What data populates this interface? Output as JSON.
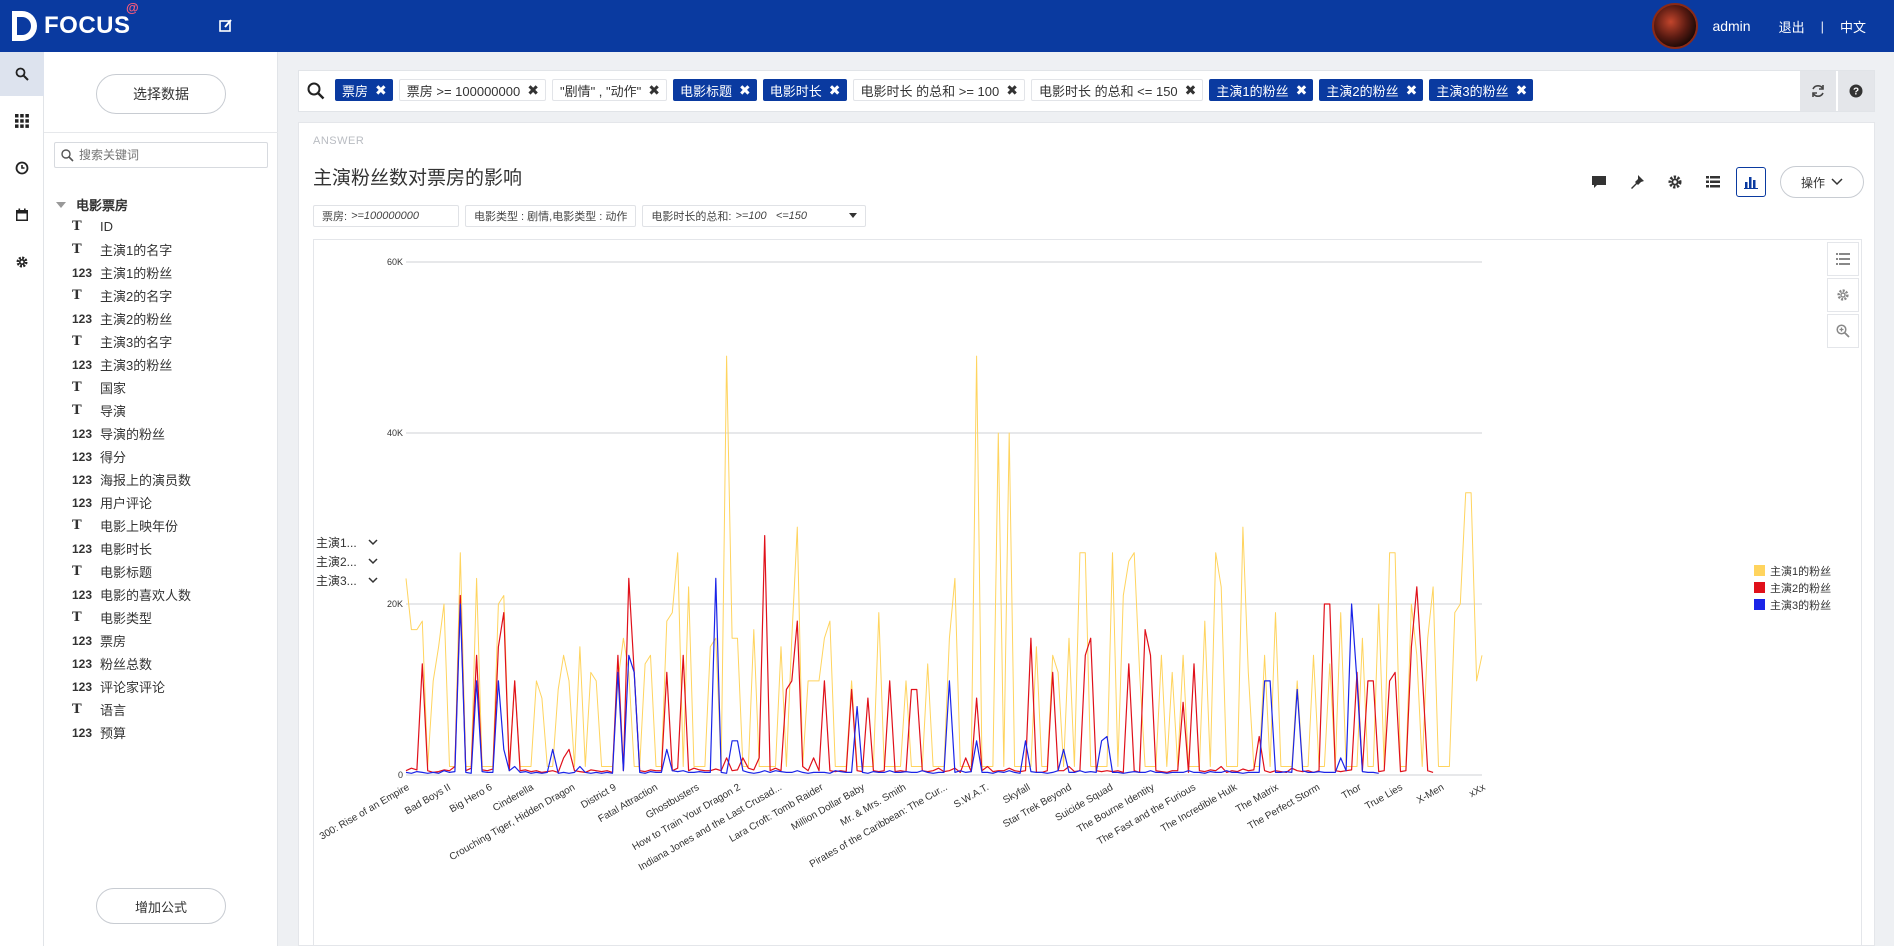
{
  "header": {
    "logo_text": "FOCUS",
    "logo_sup": "@",
    "user_name": "admin",
    "logout": "退出",
    "separator": "|",
    "language": "中文"
  },
  "rail": {
    "items": [
      "search-icon",
      "grid-icon",
      "history-icon",
      "calendar-icon",
      "settings-icon"
    ]
  },
  "data_panel": {
    "select_data_label": "选择数据",
    "search_placeholder": "搜索关键词",
    "source_name": "电影票房",
    "add_formula_label": "增加公式",
    "fields": [
      {
        "type": "T",
        "name": "ID"
      },
      {
        "type": "T",
        "name": "主演1的名字"
      },
      {
        "type": "123",
        "name": "主演1的粉丝"
      },
      {
        "type": "T",
        "name": "主演2的名字"
      },
      {
        "type": "123",
        "name": "主演2的粉丝"
      },
      {
        "type": "T",
        "name": "主演3的名字"
      },
      {
        "type": "123",
        "name": "主演3的粉丝"
      },
      {
        "type": "T",
        "name": "国家"
      },
      {
        "type": "T",
        "name": "导演"
      },
      {
        "type": "123",
        "name": "导演的粉丝"
      },
      {
        "type": "123",
        "name": "得分"
      },
      {
        "type": "123",
        "name": "海报上的演员数"
      },
      {
        "type": "123",
        "name": "用户评论"
      },
      {
        "type": "T",
        "name": "电影上映年份"
      },
      {
        "type": "123",
        "name": "电影时长"
      },
      {
        "type": "T",
        "name": "电影标题"
      },
      {
        "type": "123",
        "name": "电影的喜欢人数"
      },
      {
        "type": "T",
        "name": "电影类型"
      },
      {
        "type": "123",
        "name": "票房"
      },
      {
        "type": "123",
        "name": "粉丝总数"
      },
      {
        "type": "123",
        "name": "评论家评论"
      },
      {
        "type": "T",
        "name": "语言"
      },
      {
        "type": "123",
        "name": "预算"
      }
    ]
  },
  "query": {
    "tokens": [
      {
        "kind": "col",
        "label": "票房"
      },
      {
        "kind": "filter",
        "label": "票房 >= 100000000"
      },
      {
        "kind": "filter",
        "label": "\"剧情\" , \"动作\""
      },
      {
        "kind": "col",
        "label": "电影标题"
      },
      {
        "kind": "col",
        "label": "电影时长"
      },
      {
        "kind": "filter",
        "label": "电影时长 的总和 >= 100"
      },
      {
        "kind": "filter",
        "label": "电影时长 的总和 <= 150"
      },
      {
        "kind": "col",
        "label": "主演1的粉丝"
      },
      {
        "kind": "col",
        "label": "主演2的粉丝"
      },
      {
        "kind": "col",
        "label": "主演3的粉丝"
      }
    ],
    "remove_glyph": "✖"
  },
  "answer": {
    "label": "ANSWER",
    "title": "主演粉丝数对票房的影响",
    "ops_label": "操作",
    "chips": [
      {
        "label": "票房:",
        "value": ">=100000000"
      },
      {
        "label": "电影类型 : 剧情,电影类型 : 动作",
        "value": ""
      },
      {
        "label": "电影时长的总和:",
        "value": ">=100   <=150"
      }
    ],
    "series_selectors": [
      "主演1...",
      "主演2...",
      "主演3..."
    ]
  },
  "colors": {
    "brand": "#0a3aa0",
    "series1": "#ffd45e",
    "series2": "#e0101a",
    "series3": "#1a24e8"
  },
  "chart_data": {
    "type": "line",
    "title": "",
    "xlabel": "电影标题",
    "ylabel": "",
    "ylim": [
      0,
      60000
    ],
    "yticks": [
      0,
      20000,
      40000,
      60000
    ],
    "ytick_labels": [
      "0",
      "20K",
      "40K",
      "60K"
    ],
    "x_labels": [
      "300: Rise of an Empire",
      "Bad Boys II",
      "Big Hero 6",
      "Cinderella",
      "Crouching Tiger, Hidden Dragon",
      "District 9",
      "Fatal Attraction",
      "Ghostbusters",
      "How to Train Your Dragon 2",
      "Indiana Jones and the Last Crusad...",
      "Lara Croft: Tomb Raider",
      "Million Dollar Baby",
      "Mr. & Mrs. Smith",
      "Pirates of the Caribbean: The Cur...",
      "S.W.A.T.",
      "Skyfall",
      "Star Trek Beyond",
      "Suicide Squad",
      "The Bourne Identity",
      "The Fast and the Furious",
      "The Incredible Hulk",
      "The Matrix",
      "The Perfect Storm",
      "Thor",
      "True Lies",
      "X-Men",
      "xXx"
    ],
    "legend": [
      "主演1的粉丝",
      "主演2的粉丝",
      "主演3的粉丝"
    ],
    "series": [
      {
        "name": "主演1的粉丝",
        "values": [
          23000,
          17000,
          17000,
          18000,
          1000,
          11000,
          15000,
          20000,
          1000,
          1000,
          26000,
          1000,
          1000,
          23000,
          1000,
          1000,
          1000,
          20000,
          21000,
          1000,
          11000,
          1000,
          1000,
          1000,
          11000,
          9000,
          1000,
          1000,
          10000,
          14000,
          11000,
          1000,
          15000,
          1000,
          12000,
          11000,
          1000,
          1000,
          1000,
          11000,
          16000,
          12000,
          1000,
          1000,
          13000,
          14000,
          1000,
          1000,
          18000,
          19000,
          26000,
          1000,
          22000,
          1000,
          1000,
          1000,
          15000,
          16000,
          1000,
          49000,
          16000,
          16000,
          1000,
          1000,
          17000,
          1000,
          1000,
          1000,
          1000,
          15000,
          1000,
          16000,
          29000,
          1000,
          11000,
          11000,
          11000,
          16000,
          18000,
          1000,
          1000,
          1000,
          11000,
          1000,
          1000,
          1000,
          1000,
          19000,
          1000,
          1000,
          1000,
          1000,
          11000,
          1000,
          1000,
          1000,
          13000,
          1000,
          1000,
          1000,
          16000,
          23000,
          1000,
          1000,
          1000,
          49000,
          1000,
          1000,
          1000,
          40000,
          1000,
          40000,
          1000,
          1000,
          1000,
          1000,
          15000,
          1000,
          1000,
          14000,
          12000,
          1000,
          16000,
          1000,
          26000,
          26000,
          1000,
          1000,
          1000,
          1000,
          26000,
          1000,
          21000,
          25000,
          26000,
          12000,
          1000,
          1000,
          1000,
          14000,
          1000,
          12000,
          1000,
          14000,
          1000,
          1000,
          1000,
          18000,
          1000,
          26000,
          22000,
          1000,
          1000,
          1000,
          29000,
          12000,
          1000,
          1000,
          14000,
          1000,
          19000,
          1000,
          1000,
          1000,
          11000,
          1000,
          1000,
          14000,
          1000,
          1000,
          13000,
          1000,
          19000,
          1000,
          1000,
          1000,
          16000,
          1000,
          1000,
          20000,
          1000,
          26000,
          26000,
          1000,
          1000,
          20000,
          14000,
          1000,
          16000,
          22000,
          1000,
          1000,
          1000,
          19000,
          20000,
          33000,
          33000,
          11000,
          14000
        ]
      },
      {
        "name": "主演2的粉丝",
        "values": [
          500,
          800,
          600,
          13000,
          500,
          300,
          400,
          600,
          500,
          1000,
          21000,
          500,
          800,
          14000,
          600,
          500,
          700,
          15000,
          19000,
          500,
          11000,
          500,
          600,
          400,
          500,
          300,
          400,
          500,
          300,
          2000,
          3000,
          500,
          400,
          300,
          600,
          500,
          400,
          500,
          300,
          14000,
          500,
          23000,
          12000,
          500,
          400,
          600,
          500,
          500,
          12000,
          500,
          800,
          14000,
          500,
          800,
          600,
          500,
          500,
          700,
          500,
          2000,
          500,
          600,
          2000,
          800,
          600,
          2000,
          28000,
          500,
          800,
          500,
          10000,
          11000,
          18000,
          1000,
          500,
          2000,
          500,
          11000,
          500,
          400,
          500,
          400,
          10000,
          500,
          400,
          9000,
          500,
          400,
          500,
          11000,
          400,
          500,
          400,
          10000,
          10000,
          500,
          400,
          500,
          800,
          400,
          500,
          800,
          300,
          2000,
          400,
          9000,
          500,
          1000,
          400,
          500,
          500,
          800,
          500,
          400,
          500,
          16000,
          300,
          300,
          500,
          12000,
          500,
          500,
          1000,
          400,
          500,
          14000,
          16000,
          500,
          400,
          500,
          400,
          500,
          300,
          13000,
          500,
          300,
          17000,
          14000,
          500,
          400,
          300,
          500,
          500,
          8500,
          300,
          13000,
          500,
          400,
          600,
          500,
          1000,
          300,
          500,
          400,
          700,
          500,
          600,
          4500,
          500,
          300,
          500,
          400,
          300,
          800,
          500,
          400,
          500,
          300,
          500,
          20000,
          20000,
          500,
          400,
          500,
          600,
          12000,
          500,
          11000,
          11000,
          400,
          500,
          11000,
          12000,
          400,
          500,
          15000,
          22000,
          12000,
          500,
          300
        ]
      },
      {
        "name": "主演3的粉丝",
        "values": [
          300,
          200,
          400,
          300,
          200,
          300,
          200,
          500,
          300,
          400,
          20000,
          300,
          200,
          11000,
          400,
          300,
          300,
          11000,
          3000,
          500,
          1000,
          300,
          400,
          200,
          300,
          200,
          300,
          3000,
          200,
          300,
          200,
          300,
          1000,
          300,
          200,
          300,
          200,
          300,
          200,
          12000,
          500,
          14000,
          12000,
          300,
          200,
          400,
          300,
          300,
          3000,
          500,
          400,
          500,
          300,
          300,
          400,
          300,
          300,
          23000,
          300,
          200,
          4000,
          4000,
          500,
          300,
          200,
          300,
          500,
          300,
          500,
          400,
          300,
          300,
          500,
          300,
          200,
          300,
          300,
          300,
          200,
          500,
          400,
          300,
          300,
          8000,
          300,
          200,
          400,
          300,
          300,
          500,
          300,
          300,
          400,
          300,
          300,
          500,
          300,
          200,
          300,
          300,
          11000,
          300,
          500,
          300,
          400,
          4000,
          300,
          300,
          200,
          400,
          300,
          500,
          300,
          200,
          4000,
          400,
          300,
          300,
          200,
          300,
          500,
          3000,
          300,
          300,
          500,
          300,
          400,
          300,
          4000,
          4500,
          300,
          300,
          200,
          300,
          400,
          300,
          300,
          500,
          300,
          300,
          200,
          300,
          300,
          300,
          500,
          300,
          300,
          200,
          400,
          300,
          300,
          500,
          300,
          300,
          200,
          300,
          300,
          300,
          11000,
          11000,
          300,
          300,
          400,
          300,
          10000,
          500,
          300,
          300,
          400,
          300,
          300,
          300,
          2000,
          500,
          20000,
          11000,
          400,
          300,
          300,
          200
        ]
      }
    ]
  }
}
